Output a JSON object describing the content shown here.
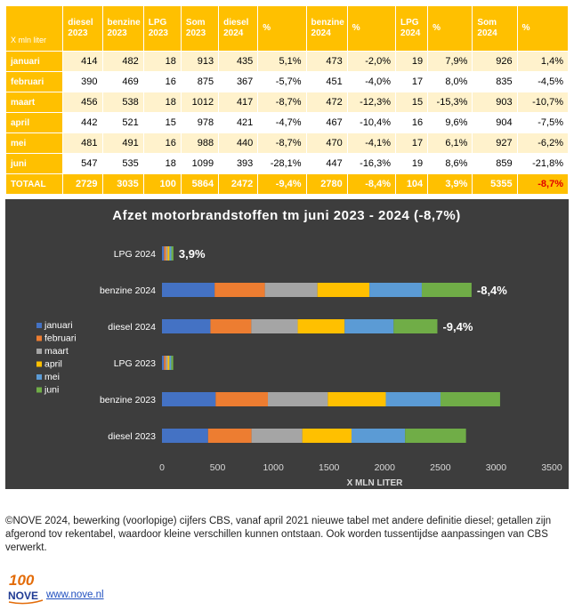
{
  "table": {
    "corner": "X mln liter",
    "headers": [
      "diesel\n2023",
      "benzine\n2023",
      "LPG\n2023",
      "Som\n2023",
      "diesel\n2024",
      "%",
      "benzine\n2024",
      "%",
      "LPG\n2024",
      "%",
      "Som\n2024",
      "%"
    ],
    "rows": [
      {
        "label": "januari",
        "cells": [
          "414",
          "482",
          "18",
          "913",
          "435",
          "5,1%",
          "473",
          "-2,0%",
          "19",
          "7,9%",
          "926",
          "1,4%"
        ]
      },
      {
        "label": "februari",
        "cells": [
          "390",
          "469",
          "16",
          "875",
          "367",
          "-5,7%",
          "451",
          "-4,0%",
          "17",
          "8,0%",
          "835",
          "-4,5%"
        ]
      },
      {
        "label": "maart",
        "cells": [
          "456",
          "538",
          "18",
          "1012",
          "417",
          "-8,7%",
          "472",
          "-12,3%",
          "15",
          "-15,3%",
          "903",
          "-10,7%"
        ]
      },
      {
        "label": "april",
        "cells": [
          "442",
          "521",
          "15",
          "978",
          "421",
          "-4,7%",
          "467",
          "-10,4%",
          "16",
          "9,6%",
          "904",
          "-7,5%"
        ]
      },
      {
        "label": "mei",
        "cells": [
          "481",
          "491",
          "16",
          "988",
          "440",
          "-8,7%",
          "470",
          "-4,1%",
          "17",
          "6,1%",
          "927",
          "-6,2%"
        ]
      },
      {
        "label": "juni",
        "cells": [
          "547",
          "535",
          "18",
          "1099",
          "393",
          "-28,1%",
          "447",
          "-16,3%",
          "19",
          "8,6%",
          "859",
          "-21,8%"
        ]
      }
    ],
    "total": {
      "label": "TOTAAL",
      "cells": [
        "2729",
        "3035",
        "100",
        "5864",
        "2472",
        "-9,4%",
        "2780",
        "-8,4%",
        "104",
        "3,9%",
        "5355",
        "-8,7%"
      ]
    }
  },
  "chart_data": {
    "type": "bar",
    "orientation": "horizontal",
    "stacked": true,
    "title": "Afzet motorbrandstoffen tm juni 2023 - 2024 (-8,7%)",
    "xlabel": "X MLN LITER",
    "xlim": [
      0,
      3500
    ],
    "xticks": [
      0,
      500,
      1000,
      1500,
      2000,
      2500,
      3000,
      3500
    ],
    "grid": false,
    "legend_position": "left",
    "categories": [
      "LPG 2024",
      "benzine 2024",
      "diesel 2024",
      "LPG 2023",
      "benzine 2023",
      "diesel 2023"
    ],
    "series": [
      {
        "name": "januari",
        "color": "#4472c4",
        "values": [
          19,
          473,
          435,
          18,
          482,
          414
        ]
      },
      {
        "name": "februari",
        "color": "#ed7d31",
        "values": [
          17,
          451,
          367,
          16,
          469,
          390
        ]
      },
      {
        "name": "maart",
        "color": "#a5a5a5",
        "values": [
          15,
          472,
          417,
          18,
          538,
          456
        ]
      },
      {
        "name": "april",
        "color": "#ffc000",
        "values": [
          16,
          467,
          421,
          15,
          521,
          442
        ]
      },
      {
        "name": "mei",
        "color": "#5b9bd5",
        "values": [
          17,
          470,
          440,
          16,
          491,
          481
        ]
      },
      {
        "name": "juni",
        "color": "#70ad47",
        "values": [
          19,
          447,
          393,
          18,
          535,
          547
        ]
      }
    ],
    "annotations": [
      {
        "category": "LPG 2024",
        "text": "3,9%"
      },
      {
        "category": "benzine 2024",
        "text": "-8,4%"
      },
      {
        "category": "diesel 2024",
        "text": "-9,4%"
      }
    ]
  },
  "footer": {
    "note": "©NOVE 2024, bewerking (voorlopige) cijfers CBS, vanaf april 2021 nieuwe tabel met andere definitie diesel; getallen zijn afgerond tov rekentabel, waardoor kleine verschillen kunnen ontstaan. Ook worden tussentijdse aanpassingen van CBS verwerkt.",
    "logo_number": "100",
    "logo_text": "NOVE",
    "link": "www.nove.nl"
  }
}
